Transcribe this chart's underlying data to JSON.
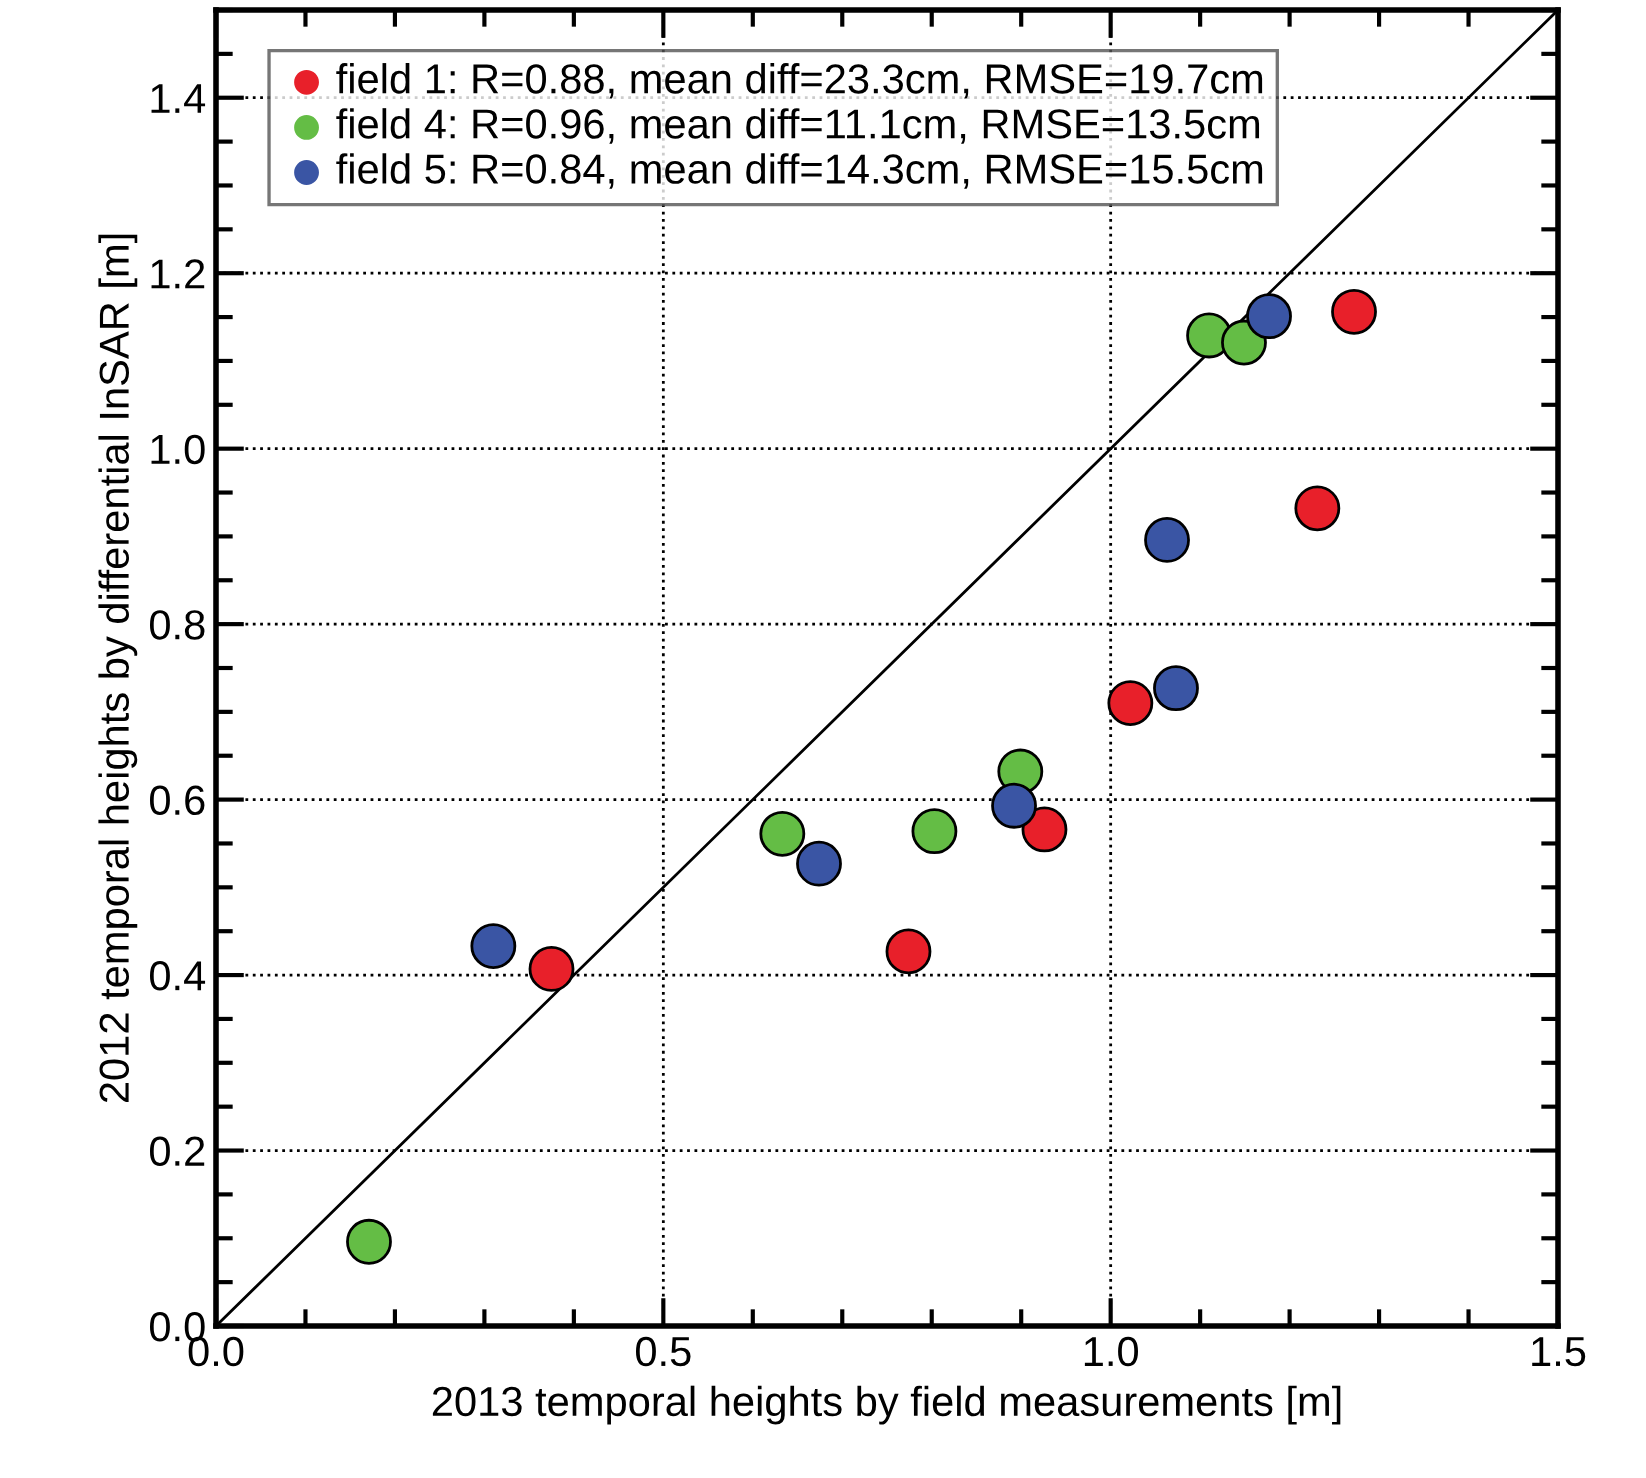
{
  "chart_data": {
    "type": "scatter",
    "xlabel": "2013 temporal heights by field measurements [m]",
    "ylabel": "2012 temporal heights by differential InSAR [m]",
    "xlim": [
      0,
      1.5
    ],
    "xticks": [
      {
        "value": 0,
        "label": "0.0"
      },
      0.5,
      {
        "value": 1,
        "label": "1.0"
      },
      1.5
    ],
    "ylim": [
      0,
      1.5
    ],
    "yticks": [
      {
        "value": 0,
        "label": "0.0"
      },
      0.2,
      0.4,
      0.6,
      0.8,
      {
        "value": 1,
        "label": "1.0"
      },
      1.2,
      1.4
    ],
    "grid": true,
    "legend": "top left",
    "marker": "circle",
    "series": [
      {
        "name": "field 1: R=0.88, mean diff=23.3cm, RMSE=19.7cm",
        "color": "#e8202a",
        "x": [
          0.375,
          0.774,
          0.926,
          1.022,
          1.231,
          1.272
        ],
        "values": [
          0.407,
          0.427,
          0.566,
          0.71,
          0.932,
          1.156
        ]
      },
      {
        "name": "field 4: R=0.96, mean diff=11.1cm, RMSE=13.5cm",
        "color": "#64bd45",
        "x": [
          0.171,
          0.633,
          0.803,
          0.899,
          1.11,
          1.149
        ],
        "values": [
          0.096,
          0.561,
          0.564,
          0.632,
          1.129,
          1.121
        ]
      },
      {
        "name": "field 5: R=0.84, mean diff=14.3cm, RMSE=15.5cm",
        "color": "#3a55a4",
        "x": [
          0.31,
          0.674,
          0.892,
          1.063,
          1.073,
          1.177
        ],
        "values": [
          0.433,
          0.527,
          0.593,
          0.896,
          0.727,
          1.151
        ]
      },
      {
        "type": "line",
        "marker": "none",
        "line_style": "solid",
        "color": "#000000",
        "x": [
          0,
          1.5
        ],
        "values": [
          0,
          1.5
        ]
      }
    ]
  }
}
